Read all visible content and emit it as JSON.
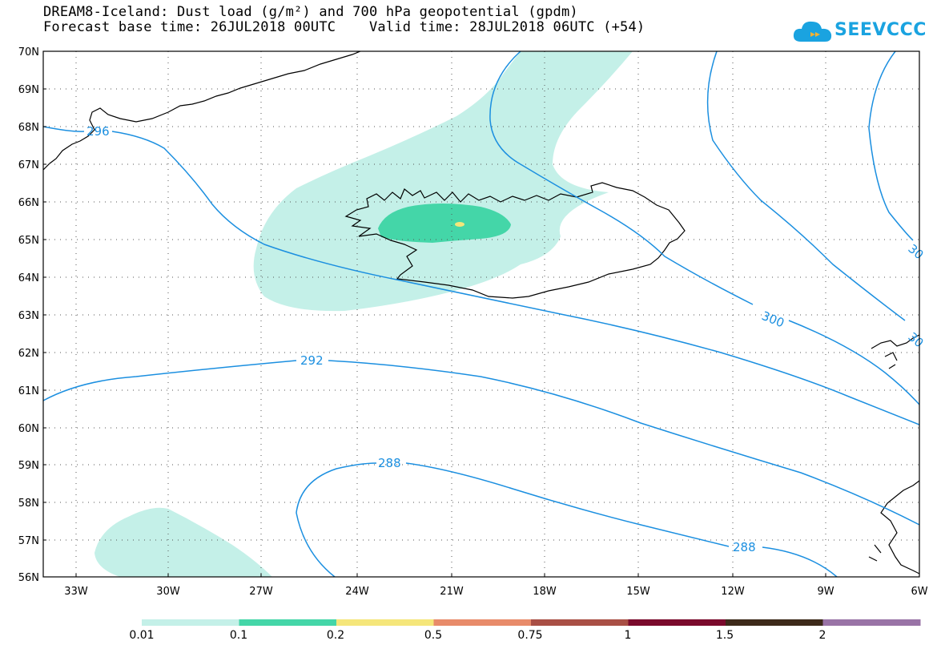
{
  "header": {
    "title_line1": "DREAM8-Iceland: Dust load (g/m²) and 700 hPa geopotential (gpdm)",
    "title_line2": "Forecast base time: 26JUL2018 00UTC    Valid time: 28JUL2018 06UTC (+54)"
  },
  "logo": {
    "text": "SEEVCCC",
    "icon": "cloud-icon",
    "color": "#1aa3e0"
  },
  "map": {
    "lat_labels": [
      "70N",
      "69N",
      "68N",
      "67N",
      "66N",
      "65N",
      "64N",
      "63N",
      "62N",
      "61N",
      "60N",
      "59N",
      "58N",
      "57N",
      "56N"
    ],
    "lon_labels": [
      "33W",
      "30W",
      "27W",
      "24W",
      "21W",
      "18W",
      "15W",
      "12W",
      "9W",
      "6W"
    ],
    "contour_labels": [
      "296",
      "292",
      "288",
      "288",
      "300",
      "30",
      "30"
    ],
    "contour_color": "#1b8fe0",
    "coastline_color": "#000000",
    "grid": "dotted"
  },
  "colorbar": {
    "labels": [
      "0.01",
      "0.1",
      "0.2",
      "0.5",
      "0.75",
      "1",
      "1.5",
      "2"
    ],
    "colors": [
      "#c4f0e8",
      "#44d6a8",
      "#f5e67a",
      "#e88b6a",
      "#a94f45",
      "#7a0a2c",
      "#3d2a1a",
      "#9973a6"
    ]
  }
}
